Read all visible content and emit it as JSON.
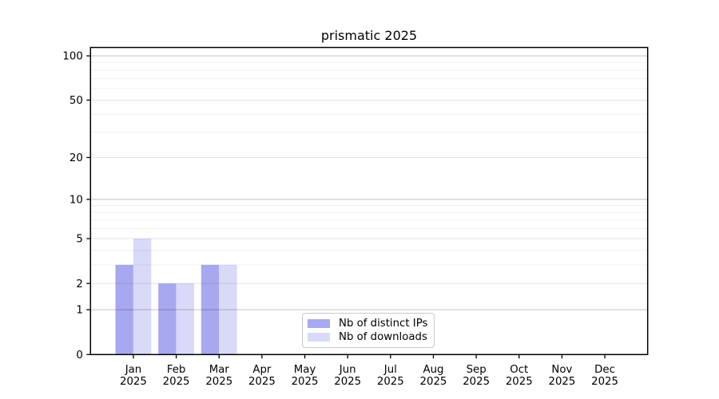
{
  "chart_data": {
    "type": "bar",
    "title": "prismatic 2025",
    "categories": [
      "Jan",
      "Feb",
      "Mar",
      "Apr",
      "May",
      "Jun",
      "Jul",
      "Aug",
      "Sep",
      "Oct",
      "Nov",
      "Dec"
    ],
    "year": "2025",
    "series": [
      {
        "name": "Nb of distinct IPs",
        "color": "#a8a8f0",
        "values": [
          3,
          2,
          3,
          0,
          0,
          0,
          0,
          0,
          0,
          0,
          0,
          0
        ]
      },
      {
        "name": "Nb of downloads",
        "color": "#d9d9f8",
        "values": [
          5,
          2,
          3,
          0,
          0,
          0,
          0,
          0,
          0,
          0,
          0,
          0
        ]
      }
    ],
    "yscale": "log10(1+v)",
    "ylim": [
      0,
      114
    ],
    "y_ticks": [
      0,
      1,
      2,
      5,
      10,
      20,
      50,
      100
    ],
    "y_minor_gridlines": [
      3,
      4,
      6,
      7,
      8,
      9,
      30,
      40,
      60,
      70,
      80,
      90
    ],
    "grid": "on",
    "grid_over_bars": true,
    "legend_position": "lower center inside",
    "colors": {
      "axis": "#000000",
      "grid_decade": "rgba(0,0,0,0.24)",
      "grid_labeled": "rgba(0,0,0,0.11)",
      "grid_minor": "rgba(0,0,0,0.06)",
      "background": "#ffffff",
      "legend_border": "#c8c8c8"
    }
  }
}
